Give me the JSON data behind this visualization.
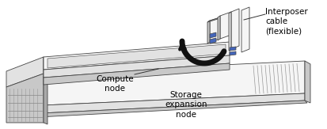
{
  "bg_color": "#ffffff",
  "fig_width": 4.13,
  "fig_height": 1.63,
  "dpi": 100,
  "labels": {
    "interposer": "Interposer\ncable\n(flexible)",
    "compute": "Compute\nnode",
    "storage": "Storage\nexpansion\nnode"
  },
  "outline_color": "#444444",
  "fill_white": "#f5f5f5",
  "fill_light": "#e2e2e2",
  "fill_mid": "#c8c8c8",
  "fill_dark": "#aaaaaa",
  "fill_darker": "#888888",
  "blue_color": "#4466bb",
  "arrow_color": "#111111"
}
